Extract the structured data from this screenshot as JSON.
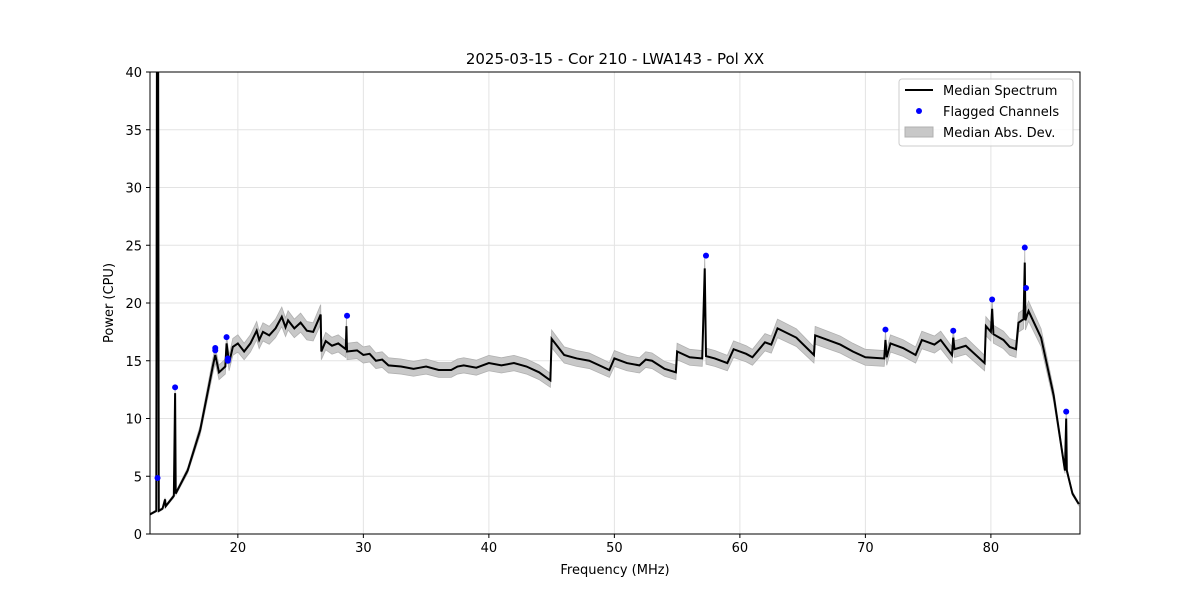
{
  "chart_data": {
    "type": "line",
    "title": "2025-03-15 - Cor 210 - LWA143 - Pol XX",
    "xlabel": "Frequency (MHz)",
    "ylabel": "Power (CPU)",
    "xlim": [
      13.0,
      87.1
    ],
    "ylim": [
      0,
      40
    ],
    "xticks": [
      20,
      30,
      40,
      50,
      60,
      70,
      80
    ],
    "yticks": [
      0,
      5,
      10,
      15,
      20,
      25,
      30,
      35,
      40
    ],
    "grid": true,
    "legend_position": "top-right",
    "legend": [
      "Median Spectrum",
      "Flagged Channels",
      "Median Abs. Dev."
    ],
    "colors": {
      "median": "#000000",
      "flagged": "#0000ff",
      "mad": "#c8c8c8"
    },
    "mad_fraction": 0.045,
    "median_spectrum": [
      [
        13.0,
        1.7
      ],
      [
        13.5,
        2.0
      ],
      [
        13.55,
        40
      ],
      [
        13.65,
        40
      ],
      [
        13.7,
        2.0
      ],
      [
        14.0,
        2.2
      ],
      [
        14.2,
        3.0
      ],
      [
        14.25,
        2.4
      ],
      [
        14.9,
        3.3
      ],
      [
        15.0,
        12.2
      ],
      [
        15.05,
        3.5
      ],
      [
        16,
        5.5
      ],
      [
        17,
        9
      ],
      [
        18,
        14.5
      ],
      [
        18.2,
        15.5
      ],
      [
        18.5,
        14
      ],
      [
        19,
        14.5
      ],
      [
        19.1,
        16.5
      ],
      [
        19.3,
        14.8
      ],
      [
        19.6,
        16.2
      ],
      [
        20,
        16.5
      ],
      [
        20.5,
        15.8
      ],
      [
        21,
        16.5
      ],
      [
        21.5,
        17.6
      ],
      [
        21.7,
        16.8
      ],
      [
        22,
        17.5
      ],
      [
        22.5,
        17.2
      ],
      [
        23,
        17.8
      ],
      [
        23.5,
        18.8
      ],
      [
        23.8,
        17.9
      ],
      [
        24,
        18.5
      ],
      [
        24.5,
        17.8
      ],
      [
        25,
        18.3
      ],
      [
        25.5,
        17.6
      ],
      [
        26,
        17.5
      ],
      [
        26.6,
        19
      ],
      [
        26.65,
        15.8
      ],
      [
        27,
        16.7
      ],
      [
        27.5,
        16.3
      ],
      [
        28,
        16.5
      ],
      [
        28.6,
        16.0
      ],
      [
        28.65,
        18
      ],
      [
        28.7,
        15.8
      ],
      [
        29.5,
        15.9
      ],
      [
        30,
        15.5
      ],
      [
        30.5,
        15.6
      ],
      [
        31,
        15.0
      ],
      [
        31.5,
        15.1
      ],
      [
        32,
        14.6
      ],
      [
        33,
        14.5
      ],
      [
        34,
        14.3
      ],
      [
        34.5,
        14.4
      ],
      [
        35,
        14.5
      ],
      [
        36,
        14.2
      ],
      [
        37,
        14.2
      ],
      [
        37.5,
        14.5
      ],
      [
        38,
        14.6
      ],
      [
        39,
        14.4
      ],
      [
        40,
        14.8
      ],
      [
        41,
        14.6
      ],
      [
        42,
        14.8
      ],
      [
        43,
        14.5
      ],
      [
        44,
        14.0
      ],
      [
        44.9,
        13.3
      ],
      [
        45,
        16.9
      ],
      [
        46,
        15.5
      ],
      [
        47,
        15.2
      ],
      [
        48,
        15
      ],
      [
        49,
        14.5
      ],
      [
        49.6,
        14.2
      ],
      [
        50,
        15.2
      ],
      [
        51,
        14.8
      ],
      [
        52,
        14.6
      ],
      [
        52.5,
        15.1
      ],
      [
        53,
        15
      ],
      [
        54,
        14.3
      ],
      [
        54.9,
        14.0
      ],
      [
        55,
        15.8
      ],
      [
        56,
        15.3
      ],
      [
        57,
        15.2
      ],
      [
        57.2,
        23
      ],
      [
        57.3,
        15.4
      ],
      [
        58,
        15.2
      ],
      [
        59,
        14.8
      ],
      [
        59.5,
        16
      ],
      [
        60.5,
        15.6
      ],
      [
        61,
        15.3
      ],
      [
        62,
        16.6
      ],
      [
        62.5,
        16.4
      ],
      [
        63,
        17.8
      ],
      [
        64.5,
        17
      ],
      [
        65.9,
        15.5
      ],
      [
        66,
        17.2
      ],
      [
        67,
        16.8
      ],
      [
        68,
        16.4
      ],
      [
        69,
        15.8
      ],
      [
        70,
        15.3
      ],
      [
        71.5,
        15.2
      ],
      [
        71.6,
        16.8
      ],
      [
        71.7,
        15.3
      ],
      [
        72,
        16.5
      ],
      [
        73,
        16.1
      ],
      [
        74,
        15.5
      ],
      [
        74.5,
        16.8
      ],
      [
        75.5,
        16.4
      ],
      [
        76,
        16.8
      ],
      [
        76.9,
        15.5
      ],
      [
        77.0,
        17
      ],
      [
        77.1,
        16.0
      ],
      [
        78,
        16.3
      ],
      [
        79.5,
        14.8
      ],
      [
        79.6,
        18
      ],
      [
        80,
        17.5
      ],
      [
        80.1,
        19.5
      ],
      [
        80.2,
        17.3
      ],
      [
        81,
        16.8
      ],
      [
        81.5,
        16.2
      ],
      [
        82,
        16
      ],
      [
        82.2,
        18.3
      ],
      [
        82.6,
        18.6
      ],
      [
        82.7,
        23.5
      ],
      [
        82.75,
        18.5
      ],
      [
        83,
        19.3
      ],
      [
        84,
        17
      ],
      [
        85,
        12
      ],
      [
        85.9,
        5.5
      ],
      [
        86,
        10
      ],
      [
        86.05,
        5.5
      ],
      [
        86.5,
        3.5
      ],
      [
        87,
        2.6
      ]
    ],
    "flagged_channels": [
      [
        13.6,
        4.85
      ],
      [
        15.0,
        12.7
      ],
      [
        18.2,
        16.1
      ],
      [
        18.2,
        15.9
      ],
      [
        19.1,
        17.05
      ],
      [
        19.2,
        15.2
      ],
      [
        19.2,
        15.0
      ],
      [
        28.7,
        18.9
      ],
      [
        57.3,
        24.1
      ],
      [
        71.6,
        17.7
      ],
      [
        77.0,
        17.6
      ],
      [
        80.1,
        20.3
      ],
      [
        82.7,
        24.8
      ],
      [
        82.8,
        21.3
      ],
      [
        86.0,
        10.6
      ]
    ]
  }
}
